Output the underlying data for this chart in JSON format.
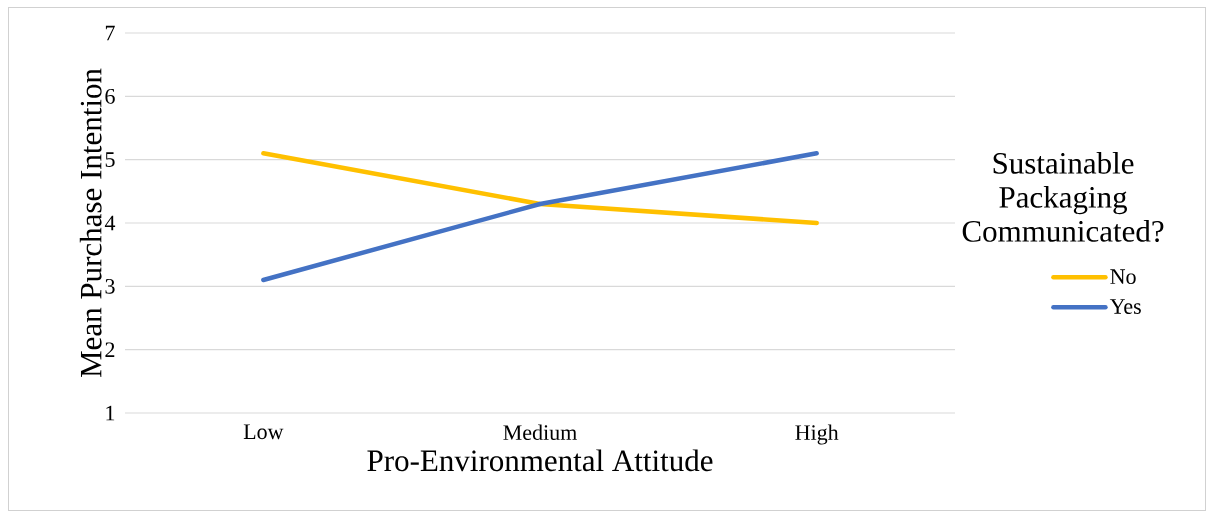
{
  "chart_data": {
    "type": "line",
    "xlabel": "Pro-Environmental Attitude",
    "ylabel": "Mean Purchase Intention",
    "legend_title": "Sustainable Packaging Communicated?",
    "categories": [
      "Low",
      "Medium",
      "High"
    ],
    "series": [
      {
        "name": "No",
        "color": "#ffc000",
        "values": [
          5.1,
          4.3,
          4.0
        ]
      },
      {
        "name": "Yes",
        "color": "#4472c4",
        "values": [
          3.1,
          4.3,
          5.1
        ]
      }
    ],
    "ylim": [
      1,
      7
    ],
    "yticks": [
      1,
      2,
      3,
      4,
      5,
      6,
      7
    ],
    "grid": "y",
    "legend": "right",
    "marker": "none",
    "line_style": "solid"
  }
}
